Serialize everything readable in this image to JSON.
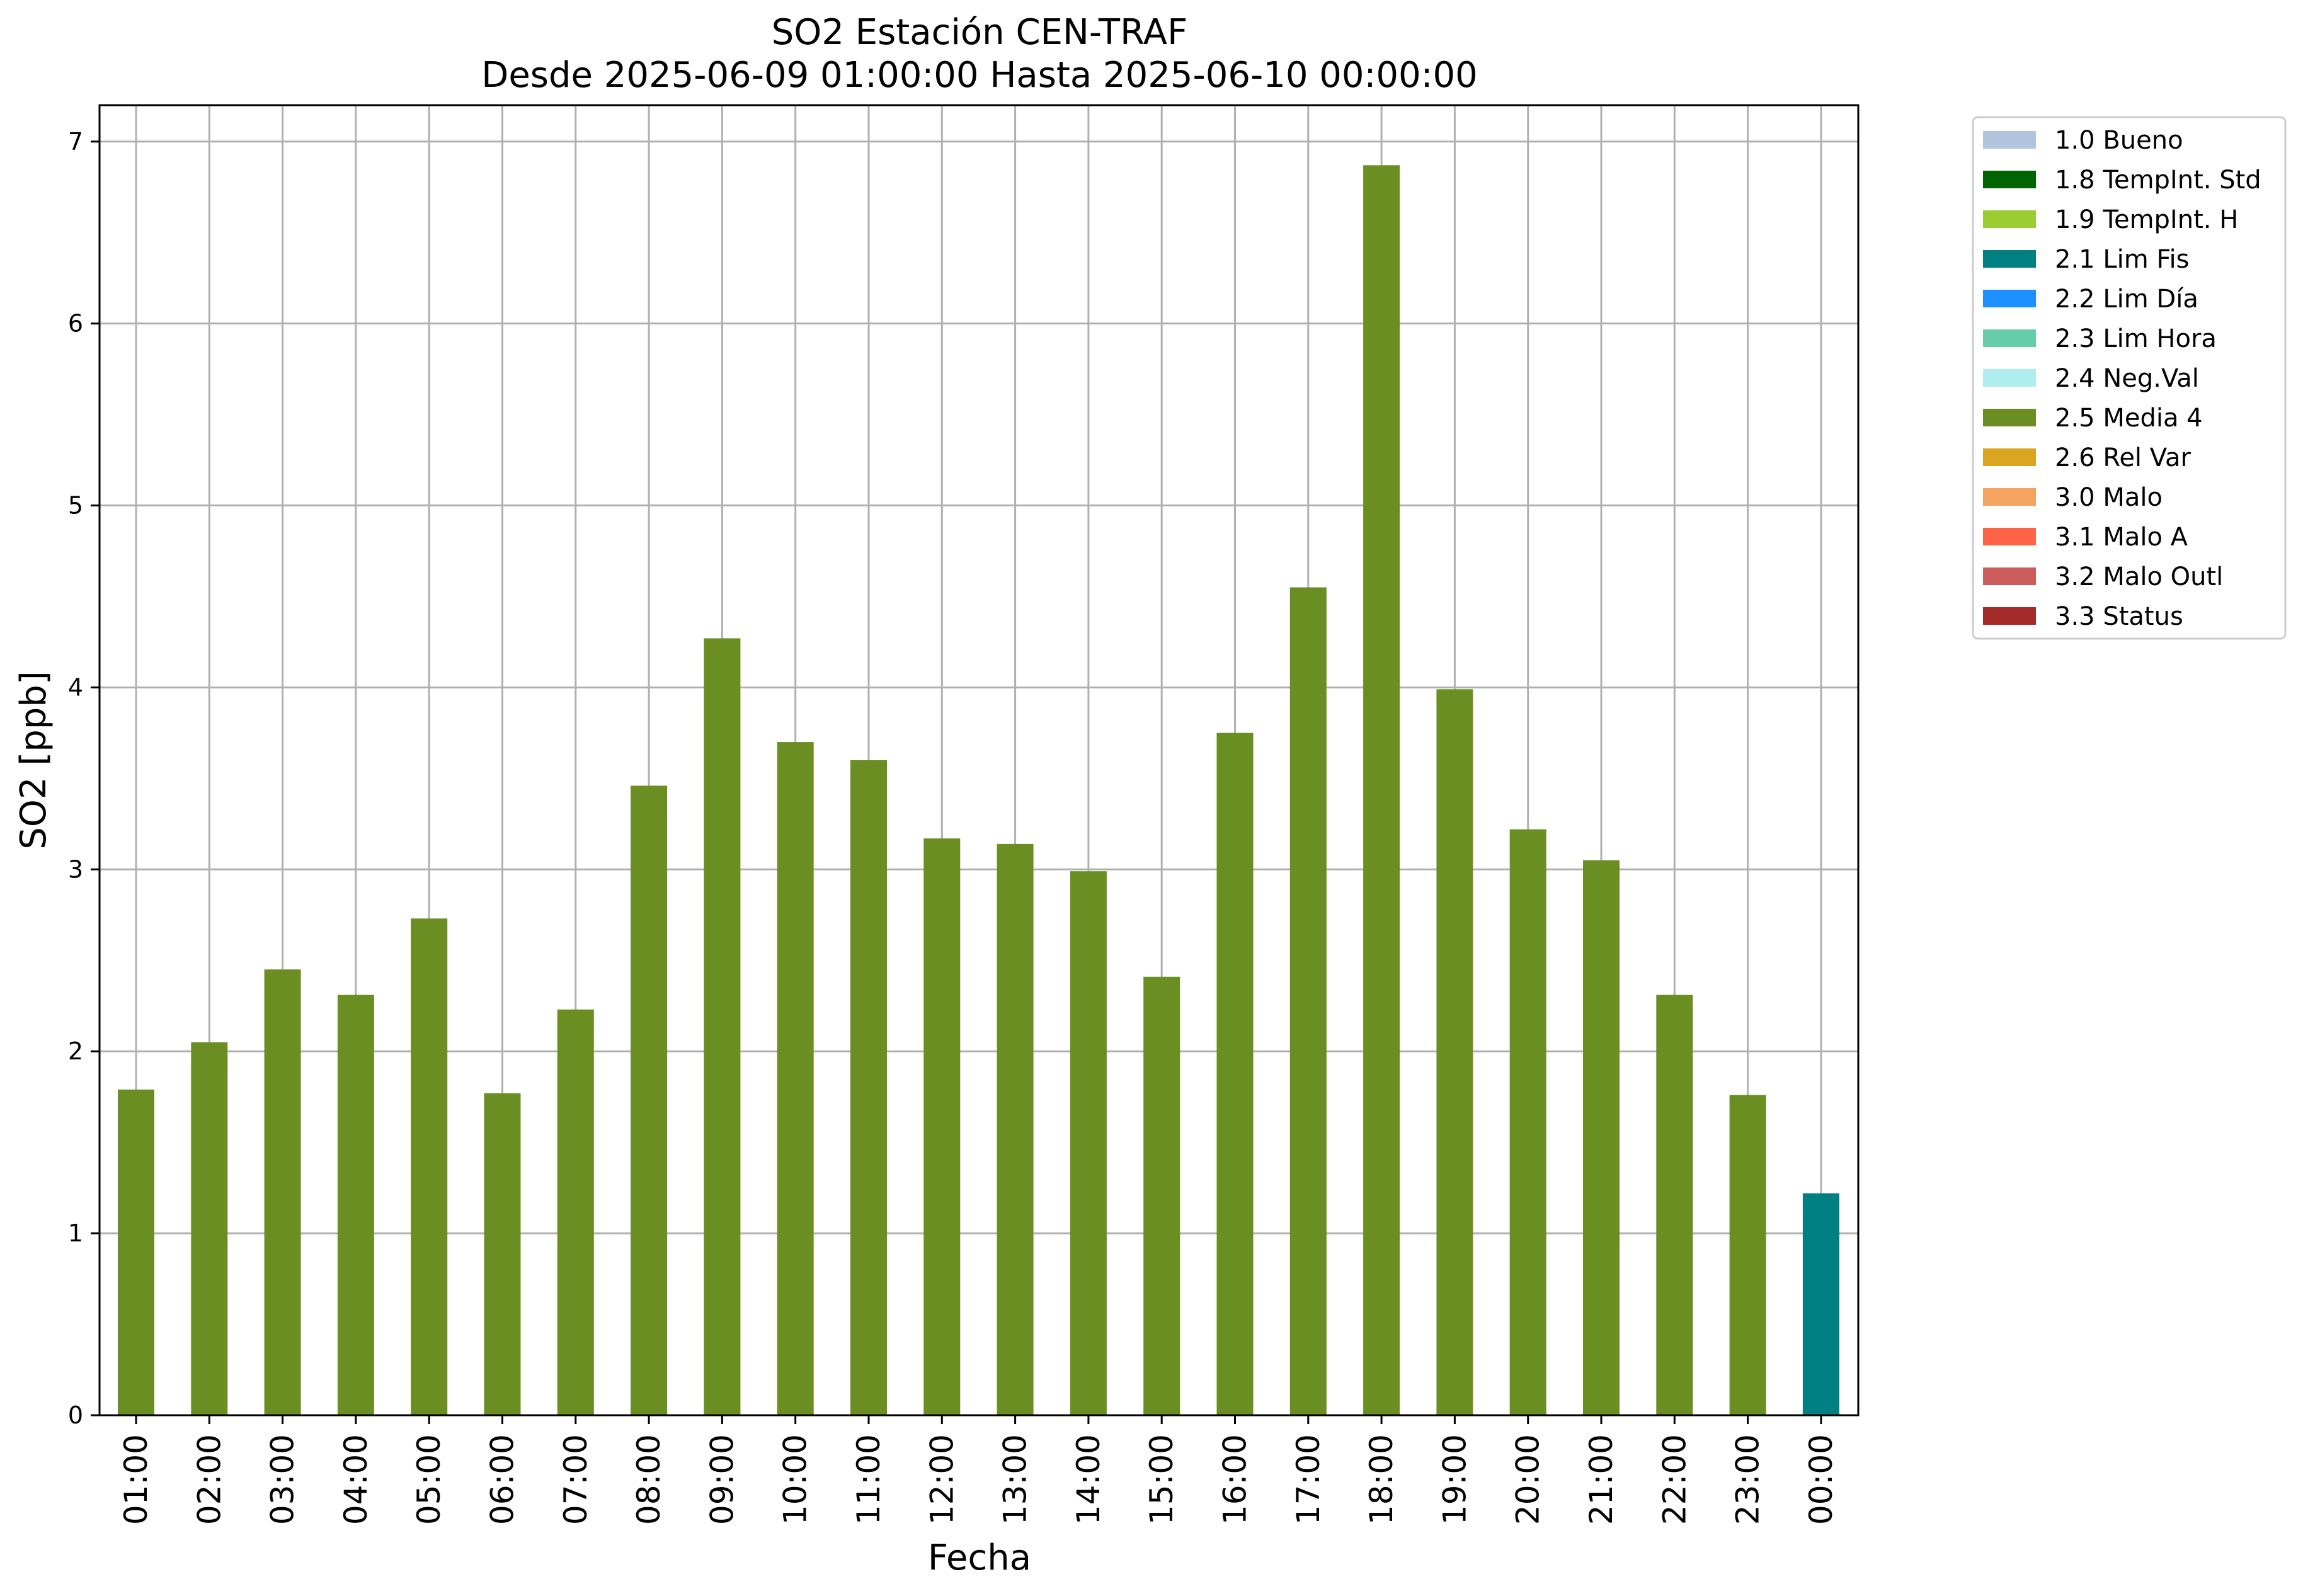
{
  "chart_data": {
    "type": "bar",
    "title": "SO2 Estación CEN-TRAF",
    "subtitle": "Desde 2025-06-09 01:00:00 Hasta 2025-06-10 00:00:00",
    "xlabel": "Fecha",
    "ylabel": "SO2 [ppb]",
    "ylim": [
      0,
      7.2
    ],
    "yticks": [
      0,
      1,
      2,
      3,
      4,
      5,
      6,
      7
    ],
    "grid": true,
    "legend_position": "outside-right-top",
    "categories": [
      "01:00",
      "02:00",
      "03:00",
      "04:00",
      "05:00",
      "06:00",
      "07:00",
      "08:00",
      "09:00",
      "10:00",
      "11:00",
      "12:00",
      "13:00",
      "14:00",
      "15:00",
      "16:00",
      "17:00",
      "18:00",
      "19:00",
      "20:00",
      "21:00",
      "22:00",
      "23:00",
      "00:00"
    ],
    "values": [
      1.79,
      2.05,
      2.45,
      2.31,
      2.73,
      1.77,
      2.23,
      3.46,
      4.27,
      3.7,
      3.6,
      3.17,
      3.14,
      2.99,
      2.41,
      3.75,
      4.55,
      6.87,
      3.99,
      3.22,
      3.05,
      2.31,
      1.76,
      1.22
    ],
    "value_flags": [
      "2.5 Media 4",
      "2.5 Media 4",
      "2.5 Media 4",
      "2.5 Media 4",
      "2.5 Media 4",
      "2.5 Media 4",
      "2.5 Media 4",
      "2.5 Media 4",
      "2.5 Media 4",
      "2.5 Media 4",
      "2.5 Media 4",
      "2.5 Media 4",
      "2.5 Media 4",
      "2.5 Media 4",
      "2.5 Media 4",
      "2.5 Media 4",
      "2.5 Media 4",
      "2.5 Media 4",
      "2.5 Media 4",
      "2.5 Media 4",
      "2.5 Media 4",
      "2.5 Media 4",
      "2.5 Media 4",
      "2.1 Lim Fis"
    ],
    "legend": [
      {
        "label": "1.0 Bueno",
        "color": "#b0c4de"
      },
      {
        "label": "1.8 TempInt. Std",
        "color": "#006400"
      },
      {
        "label": "1.9 TempInt. H",
        "color": "#9acd32"
      },
      {
        "label": "2.1 Lim Fis",
        "color": "#008080"
      },
      {
        "label": "2.2 Lim Día",
        "color": "#1e90ff"
      },
      {
        "label": "2.3 Lim Hora",
        "color": "#66cdaa"
      },
      {
        "label": "2.4 Neg.Val",
        "color": "#afeeee"
      },
      {
        "label": "2.5 Media 4",
        "color": "#6b8e23"
      },
      {
        "label": "2.6 Rel Var",
        "color": "#daa520"
      },
      {
        "label": "3.0 Malo",
        "color": "#f4a460"
      },
      {
        "label": "3.1 Malo A",
        "color": "#ff6347"
      },
      {
        "label": "3.2 Malo Outl",
        "color": "#cd5c5c"
      },
      {
        "label": "3.3 Status",
        "color": "#a52a2a"
      }
    ]
  }
}
